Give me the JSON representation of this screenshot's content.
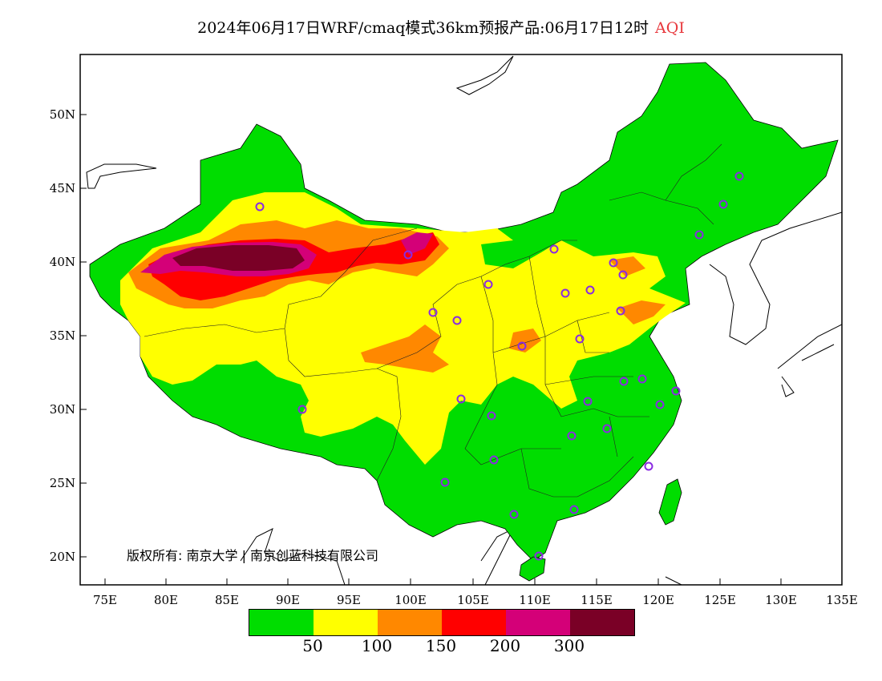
{
  "title": {
    "main": "2024年06月17日WRF/cmaq模式36km预报产品:06月17日12时",
    "variable": "AQI"
  },
  "lat_labels": [
    "50N",
    "45N",
    "40N",
    "35N",
    "30N",
    "25N",
    "20N"
  ],
  "lon_labels": [
    "75E",
    "80E",
    "85E",
    "90E",
    "95E",
    "100E",
    "105E",
    "110E",
    "115E",
    "120E",
    "125E",
    "130E",
    "135E"
  ],
  "colorbar": {
    "colors": [
      "#00dd00",
      "#ffff00",
      "#ff8800",
      "#ff0000",
      "#d40078",
      "#7a0026"
    ],
    "labels": [
      "50",
      "100",
      "150",
      "200",
      "300"
    ]
  },
  "copyright": "版权所有: 南京大学 | 南京创蓝科技有限公司",
  "stations_color": "#8a2be2"
}
